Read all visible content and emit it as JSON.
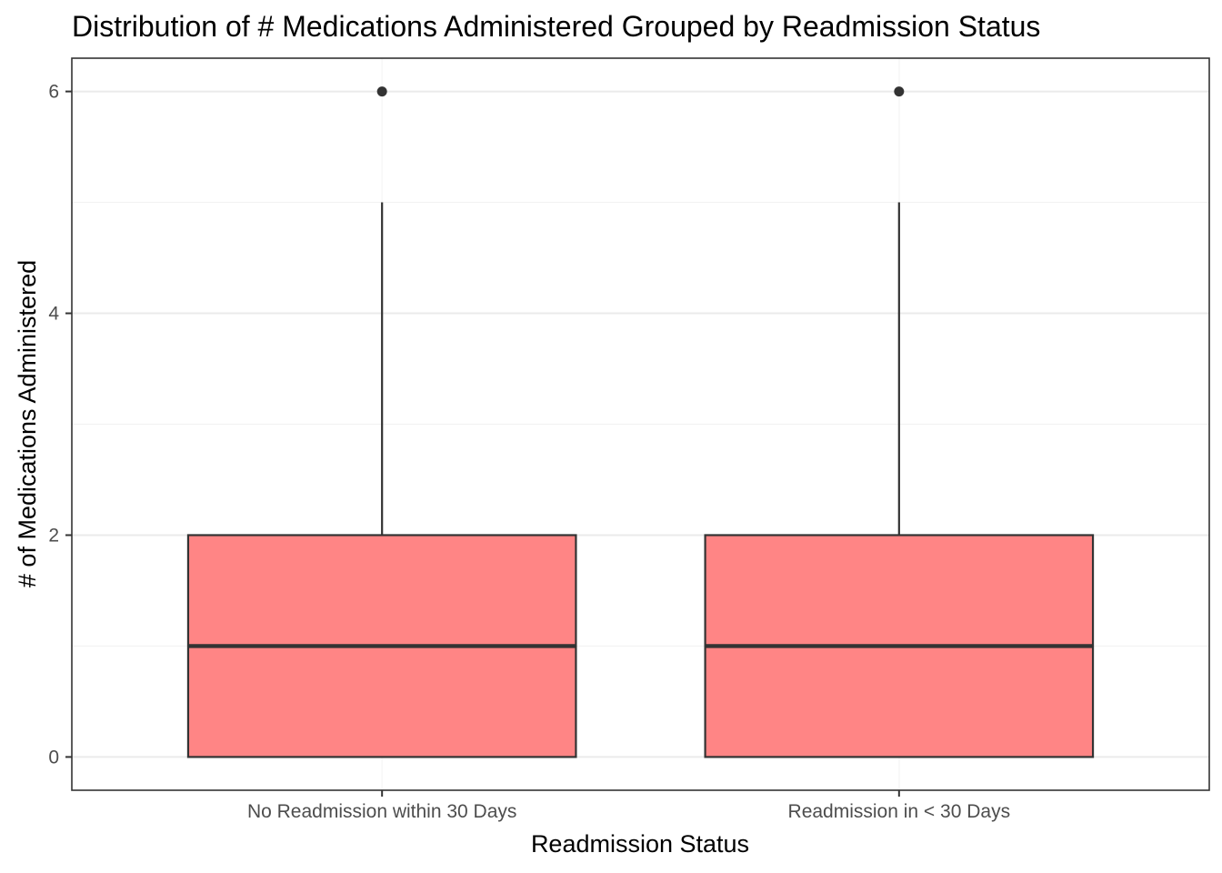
{
  "chart_data": {
    "type": "boxplot",
    "title": "Distribution of # Medications Administered Grouped by Readmission Status",
    "xlabel": "Readmission Status",
    "ylabel": "# of Medications Administered",
    "categories": [
      "No Readmission within 30 Days",
      "Readmission in < 30 Days"
    ],
    "ylim": [
      -0.3,
      6.3
    ],
    "yticks": [
      0,
      2,
      4,
      6
    ],
    "grid": true,
    "boxes": [
      {
        "category": "No Readmission within 30 Days",
        "min": 0,
        "q1": 0,
        "median": 1,
        "q3": 2,
        "max": 5,
        "outliers": [
          6
        ]
      },
      {
        "category": "Readmission in < 30 Days",
        "min": 0,
        "q1": 0,
        "median": 1,
        "q3": 2,
        "max": 5,
        "outliers": [
          6
        ]
      }
    ],
    "colors": {
      "box_fill": "#ff8080",
      "box_stroke": "#333333",
      "panel_border": "#333333",
      "grid_major": "#ebebeb",
      "grid_minor": "#f2f2f2"
    }
  }
}
